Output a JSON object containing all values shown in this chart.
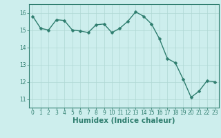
{
  "x": [
    0,
    1,
    2,
    3,
    4,
    5,
    6,
    7,
    8,
    9,
    10,
    11,
    12,
    13,
    14,
    15,
    16,
    17,
    18,
    19,
    20,
    21,
    22,
    23
  ],
  "y": [
    15.8,
    15.1,
    15.0,
    15.6,
    15.55,
    15.0,
    14.95,
    14.85,
    15.3,
    15.35,
    14.85,
    15.1,
    15.5,
    16.05,
    15.8,
    15.35,
    14.5,
    13.35,
    13.1,
    12.15,
    11.1,
    11.45,
    12.05,
    12.0
  ],
  "line_color": "#2e7d6e",
  "marker": "D",
  "markersize": 2.5,
  "linewidth": 1.0,
  "xlabel": "Humidex (Indice chaleur)",
  "xlim": [
    -0.5,
    23.5
  ],
  "ylim": [
    10.5,
    16.5
  ],
  "yticks": [
    11,
    12,
    13,
    14,
    15,
    16
  ],
  "xticks": [
    0,
    1,
    2,
    3,
    4,
    5,
    6,
    7,
    8,
    9,
    10,
    11,
    12,
    13,
    14,
    15,
    16,
    17,
    18,
    19,
    20,
    21,
    22,
    23
  ],
  "bg_color": "#cdeeed",
  "grid_color": "#b0d8d4",
  "tick_fontsize": 5.5,
  "xlabel_fontsize": 7.5,
  "xlabel_fontweight": "bold",
  "tick_color": "#2e7d6e",
  "spine_color": "#2e7d6e"
}
